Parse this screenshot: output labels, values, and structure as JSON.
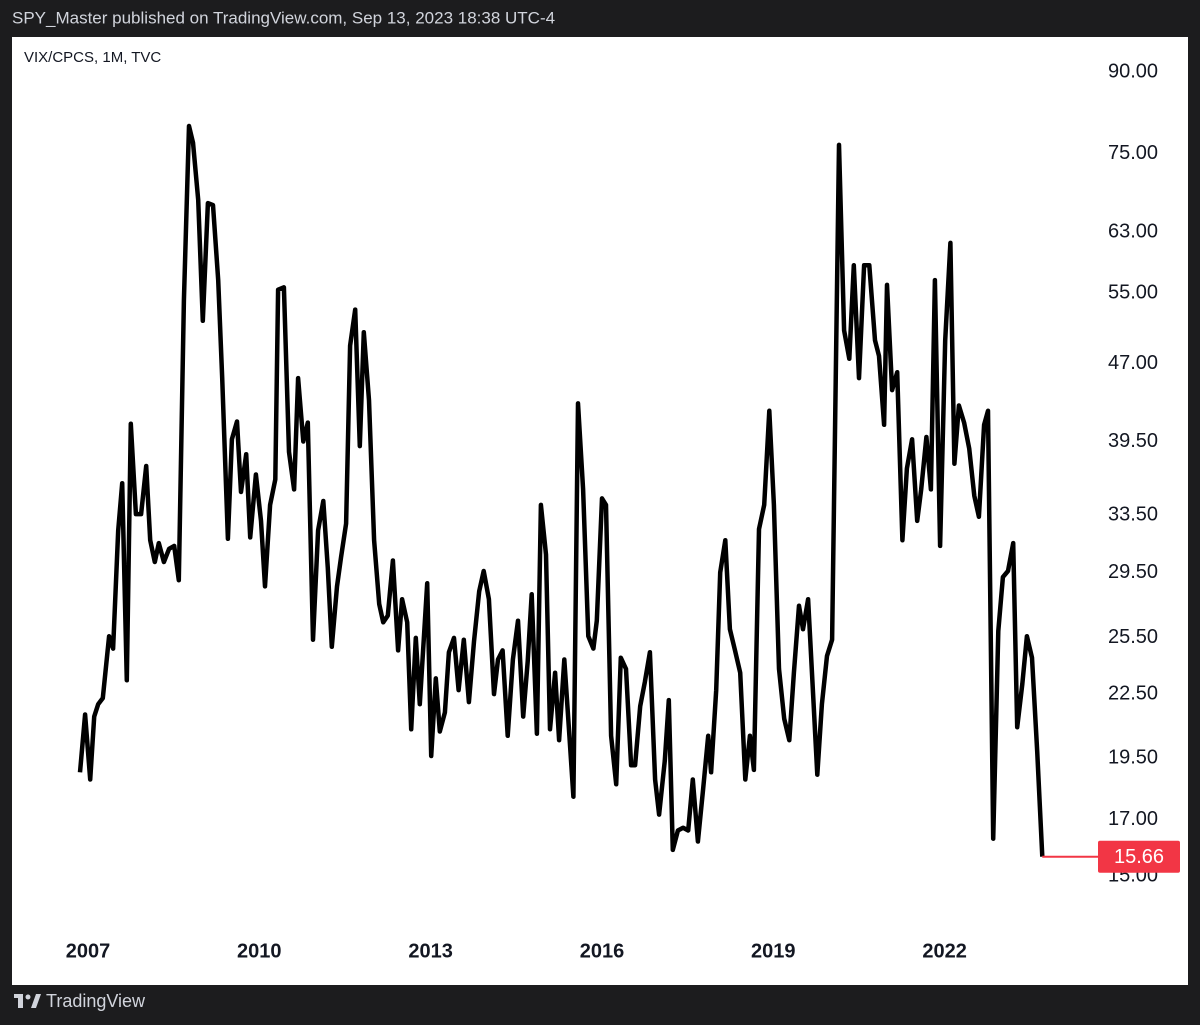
{
  "header": {
    "text": "SPY_Master published on TradingView.com, Sep 13, 2023 18:38 UTC-4"
  },
  "footer": {
    "brand": "TradingView"
  },
  "chart_data": {
    "type": "line",
    "title": "VIX/CPCS, 1M, TVC",
    "color": "#000000",
    "last_value_color": "#f23645",
    "log_scale": true,
    "xlim": [
      2005.67,
      2024.37
    ],
    "xticks": [
      2007,
      2010,
      2013,
      2016,
      2019,
      2022
    ],
    "ylim": [
      13.3,
      97.3
    ],
    "yticks": [
      {
        "value": 90,
        "label": "90.00"
      },
      {
        "value": 75,
        "label": "75.00"
      },
      {
        "value": 63,
        "label": "63.00"
      },
      {
        "value": 55,
        "label": "55.00"
      },
      {
        "value": 47,
        "label": "47.00"
      },
      {
        "value": 39.5,
        "label": "39.50"
      },
      {
        "value": 33.5,
        "label": "33.50"
      },
      {
        "value": 29.5,
        "label": "29.50"
      },
      {
        "value": 25.5,
        "label": "25.50"
      },
      {
        "value": 22.5,
        "label": "22.50"
      },
      {
        "value": 19.5,
        "label": "19.50"
      },
      {
        "value": 17,
        "label": "17.00"
      },
      {
        "value": 15,
        "label": "15.00"
      }
    ],
    "x": [
      2006.86,
      2006.95,
      2007.04,
      2007.11,
      2007.18,
      2007.26,
      2007.37,
      2007.44,
      2007.53,
      2007.6,
      2007.68,
      2007.75,
      2007.84,
      2007.93,
      2008.02,
      2008.09,
      2008.17,
      2008.24,
      2008.33,
      2008.42,
      2008.51,
      2008.59,
      2008.68,
      2008.77,
      2008.84,
      2008.93,
      2009.01,
      2009.1,
      2009.19,
      2009.28,
      2009.35,
      2009.45,
      2009.52,
      2009.61,
      2009.68,
      2009.77,
      2009.84,
      2009.94,
      2010.03,
      2010.1,
      2010.19,
      2010.28,
      2010.33,
      2010.43,
      2010.52,
      2010.61,
      2010.68,
      2010.77,
      2010.85,
      2010.94,
      2011.03,
      2011.12,
      2011.2,
      2011.27,
      2011.36,
      2011.43,
      2011.52,
      2011.59,
      2011.68,
      2011.76,
      2011.83,
      2011.92,
      2012.01,
      2012.1,
      2012.17,
      2012.25,
      2012.34,
      2012.43,
      2012.5,
      2012.59,
      2012.66,
      2012.74,
      2012.81,
      2012.94,
      2013.01,
      2013.09,
      2013.16,
      2013.25,
      2013.32,
      2013.41,
      2013.49,
      2013.58,
      2013.67,
      2013.76,
      2013.85,
      2013.93,
      2014.02,
      2014.11,
      2014.18,
      2014.26,
      2014.35,
      2014.44,
      2014.53,
      2014.62,
      2014.7,
      2014.77,
      2014.86,
      2014.93,
      2015.02,
      2015.09,
      2015.18,
      2015.25,
      2015.34,
      2015.43,
      2015.5,
      2015.58,
      2015.67,
      2015.76,
      2015.85,
      2015.91,
      2016.0,
      2016.07,
      2016.16,
      2016.25,
      2016.33,
      2016.42,
      2016.51,
      2016.58,
      2016.67,
      2016.75,
      2016.84,
      2016.93,
      2017.0,
      2017.1,
      2017.17,
      2017.24,
      2017.33,
      2017.42,
      2017.51,
      2017.59,
      2017.68,
      2017.77,
      2017.86,
      2017.91,
      2018.0,
      2018.07,
      2018.16,
      2018.24,
      2018.33,
      2018.42,
      2018.51,
      2018.59,
      2018.66,
      2018.75,
      2018.84,
      2018.93,
      2019.01,
      2019.1,
      2019.19,
      2019.28,
      2019.36,
      2019.45,
      2019.52,
      2019.61,
      2019.7,
      2019.77,
      2019.85,
      2019.94,
      2020.03,
      2020.15,
      2020.24,
      2020.33,
      2020.41,
      2020.5,
      2020.59,
      2020.68,
      2020.78,
      2020.85,
      2020.94,
      2020.99,
      2021.08,
      2021.17,
      2021.26,
      2021.34,
      2021.43,
      2021.52,
      2021.59,
      2021.68,
      2021.76,
      2021.83,
      2021.92,
      2022.01,
      2022.1,
      2022.17,
      2022.25,
      2022.34,
      2022.43,
      2022.52,
      2022.6,
      2022.69,
      2022.76,
      2022.85,
      2022.94,
      2023.02,
      2023.11,
      2023.2,
      2023.27,
      2023.36,
      2023.44,
      2023.53,
      2023.62,
      2023.71
    ],
    "values": [
      18.9,
      21.5,
      18.6,
      21.4,
      22.0,
      22.3,
      25.6,
      24.9,
      32.4,
      36.0,
      23.2,
      41.1,
      33.6,
      33.6,
      37.4,
      31.7,
      30.2,
      31.5,
      30.2,
      31.1,
      31.3,
      29.0,
      54.1,
      79.8,
      76.9,
      67.7,
      51.7,
      67.2,
      66.9,
      56.6,
      45.5,
      31.8,
      39.7,
      41.3,
      35.3,
      38.4,
      31.9,
      36.7,
      33.1,
      28.6,
      34.3,
      36.3,
      55.4,
      55.7,
      38.6,
      35.5,
      45.5,
      39.5,
      41.2,
      25.4,
      32.4,
      34.6,
      29.8,
      25.0,
      28.6,
      30.5,
      32.9,
      48.9,
      53.0,
      39.1,
      50.4,
      43.3,
      31.7,
      27.5,
      26.4,
      26.8,
      30.3,
      24.8,
      27.8,
      26.4,
      20.8,
      25.5,
      22.0,
      28.8,
      19.6,
      23.3,
      20.7,
      21.6,
      24.7,
      25.5,
      22.7,
      25.4,
      22.1,
      25.3,
      28.3,
      29.6,
      27.8,
      22.5,
      24.3,
      24.8,
      20.5,
      24.3,
      26.5,
      21.4,
      24.2,
      28.1,
      20.6,
      34.3,
      30.7,
      20.8,
      23.6,
      20.3,
      24.3,
      20.5,
      17.9,
      43.0,
      35.5,
      25.6,
      24.9,
      26.5,
      34.8,
      34.3,
      20.5,
      18.4,
      24.4,
      23.8,
      19.2,
      19.2,
      21.9,
      23.1,
      24.7,
      18.6,
      17.2,
      19.4,
      22.2,
      15.9,
      16.6,
      16.7,
      16.6,
      18.6,
      16.2,
      18.2,
      20.5,
      18.9,
      22.7,
      29.5,
      31.7,
      26.0,
      24.8,
      23.6,
      18.6,
      20.5,
      19.0,
      32.5,
      34.3,
      42.3,
      34.3,
      23.8,
      21.3,
      20.3,
      23.6,
      27.4,
      26.0,
      27.8,
      22.3,
      18.8,
      22.0,
      24.5,
      25.4,
      76.5,
      50.6,
      47.5,
      58.5,
      45.5,
      58.5,
      58.5,
      49.5,
      47.8,
      41.0,
      56.0,
      44.3,
      46.1,
      31.7,
      37.2,
      39.7,
      33.1,
      35.5,
      39.9,
      35.5,
      56.6,
      31.3,
      49.5,
      61.5,
      37.6,
      42.8,
      41.2,
      38.9,
      35.0,
      33.4,
      41.0,
      42.3,
      16.3,
      25.9,
      29.2,
      29.6,
      31.5,
      20.9,
      23.0,
      25.6,
      24.4,
      19.8,
      15.66
    ]
  }
}
